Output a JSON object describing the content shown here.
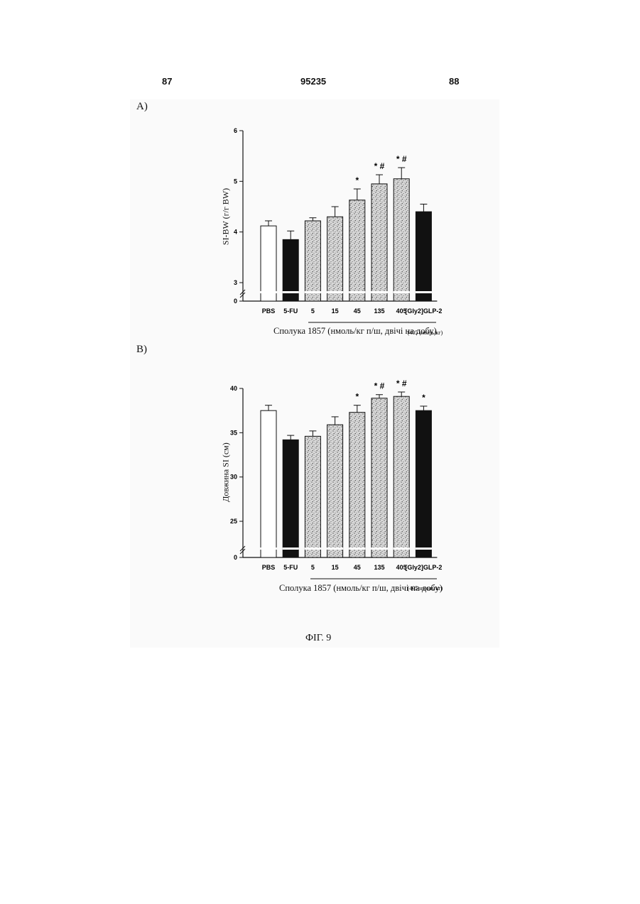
{
  "header": {
    "left": "87",
    "center": "95235",
    "right": "88"
  },
  "figure_label": "ФІГ. 9",
  "panel_a": {
    "letter": "A)",
    "xtitle": "Сполука 1857 (нмоль/кг п/ш, двічі на добу)"
  },
  "panel_b": {
    "letter": "B)",
    "xtitle": "Сполука 1857 (нмоль/кг п/ш, двічі на добу)"
  },
  "colors": {
    "fill_black": "#111111",
    "fill_white": "#ffffff",
    "stipple": "#777777"
  },
  "chart_data": [
    {
      "type": "bar",
      "title": "",
      "xlabel": "Сполука 1857 (нмоль/кг п/ш, двічі на добу)",
      "ylabel": "SI-BW (г/г BW)",
      "ylim": [
        3,
        6
      ],
      "axis_break": true,
      "y_ticks": [
        "0",
        "3",
        "4",
        "5",
        "6"
      ],
      "categories": [
        "PBS",
        "5-FU",
        "5",
        "15",
        "45",
        "135",
        "405",
        "[Gly2]GLP-2"
      ],
      "category_note": "(405 нмоль/кг)",
      "values": [
        4.12,
        3.85,
        4.22,
        4.3,
        4.63,
        4.95,
        5.05,
        4.4
      ],
      "errors": [
        0.1,
        0.17,
        0.06,
        0.2,
        0.22,
        0.18,
        0.22,
        0.15
      ],
      "fills": [
        "white",
        "black",
        "stipple",
        "stipple",
        "stipple",
        "stipple",
        "stipple",
        "black"
      ],
      "significance": [
        "",
        "",
        "",
        "",
        "*",
        "* #",
        "* #",
        ""
      ],
      "grid": false
    },
    {
      "type": "bar",
      "title": "",
      "xlabel": "Сполука 1857 (нмоль/кг п/ш, двічі на добу)",
      "ylabel": "Довжина SI (см)",
      "ylim": [
        23,
        40
      ],
      "axis_break": true,
      "y_ticks": [
        "0",
        "25",
        "30",
        "35",
        "40"
      ],
      "categories": [
        "PBS",
        "5-FU",
        "5",
        "15",
        "45",
        "135",
        "405",
        "[Gly2]GLP-2"
      ],
      "category_note": "(405 нмоль/кг)",
      "values": [
        37.5,
        34.2,
        34.6,
        35.9,
        37.3,
        38.9,
        39.1,
        37.5
      ],
      "errors": [
        0.6,
        0.5,
        0.6,
        0.9,
        0.8,
        0.4,
        0.5,
        0.5
      ],
      "fills": [
        "white",
        "black",
        "stipple",
        "stipple",
        "stipple",
        "stipple",
        "stipple",
        "black"
      ],
      "significance": [
        "",
        "",
        "",
        "",
        "*",
        "* #",
        "* #",
        "*"
      ],
      "grid": false
    }
  ]
}
